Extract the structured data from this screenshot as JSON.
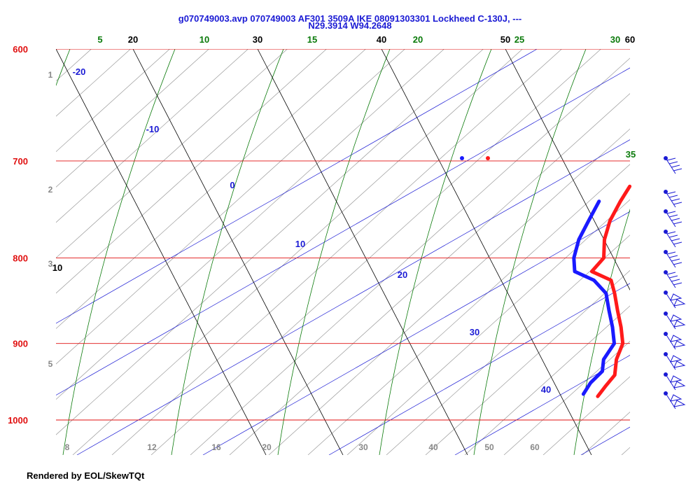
{
  "header": {
    "title_line1": "g070749003.avp 070749003 AF301 3509A IKE  08091303301 Lockheed C-130J, ---",
    "title_line2": "N29.3914 W94.2648"
  },
  "footer": {
    "text": "Rendered by EOL/SkewTQt"
  },
  "colors": {
    "isobar": "#e01010",
    "isotherm": "#000000",
    "dry_adiabat": "#9a9a9a",
    "moist_adiabat": "#0a7a0a",
    "mixing_ratio": "#1a1ad4",
    "temperature_trace": "#ff1a1a",
    "dewpoint_trace": "#1a1aff",
    "wind_barb": "#1a1ad4"
  },
  "chart_data": {
    "type": "line",
    "title": "g070749003.avp 070749003 AF301 3509A IKE  08091303301 Lockheed C-130J, ---",
    "subtitle": "N29.3914 W94.2648",
    "ylabel": "",
    "xlabel": "",
    "pressure_ticks": [
      "600",
      "700",
      "800",
      "900",
      "1000"
    ],
    "left_height_labels": [
      "1",
      "2",
      "3",
      "5"
    ],
    "isotherm_labels_top": [
      "20",
      "30",
      "40",
      "50",
      "60"
    ],
    "isotherm_label_left": "10",
    "moist_adiabat_labels": [
      "5",
      "10",
      "15",
      "20",
      "25",
      "30",
      "35"
    ],
    "mixing_ratio_labels": [
      "-20",
      "-10",
      "0",
      "10",
      "20",
      "30",
      "40"
    ],
    "dry_adiabat_labels_bottom": [
      "8",
      "12",
      "16",
      "20",
      "30",
      "40",
      "50",
      "60"
    ],
    "series": [
      {
        "name": "",
        "values": [
          [
            725,
            14.5
          ],
          [
            740,
            14.9
          ],
          [
            760,
            15.5
          ],
          [
            780,
            16.3
          ],
          [
            800,
            17.3
          ],
          [
            815,
            17.5
          ],
          [
            825,
            18.9
          ],
          [
            840,
            19.8
          ],
          [
            860,
            20.9
          ],
          [
            880,
            22.0
          ],
          [
            900,
            23.0
          ],
          [
            920,
            23.6
          ],
          [
            940,
            24.4
          ],
          [
            955,
            24.6
          ],
          [
            968,
            24.8
          ]
        ]
      },
      {
        "name": "",
        "values": [
          [
            740,
            13.9
          ],
          [
            760,
            14.5
          ],
          [
            780,
            15.1
          ],
          [
            800,
            15.9
          ],
          [
            815,
            16.7
          ],
          [
            825,
            18.1
          ],
          [
            840,
            19.4
          ],
          [
            860,
            20.5
          ],
          [
            880,
            21.6
          ],
          [
            900,
            22.6
          ],
          [
            920,
            23.0
          ],
          [
            935,
            23.6
          ],
          [
            950,
            23.7
          ],
          [
            965,
            24.0
          ]
        ]
      }
    ],
    "wind_barbs": [
      "",
      "",
      "",
      "",
      "",
      "",
      "",
      "",
      "",
      "",
      "",
      ""
    ]
  }
}
